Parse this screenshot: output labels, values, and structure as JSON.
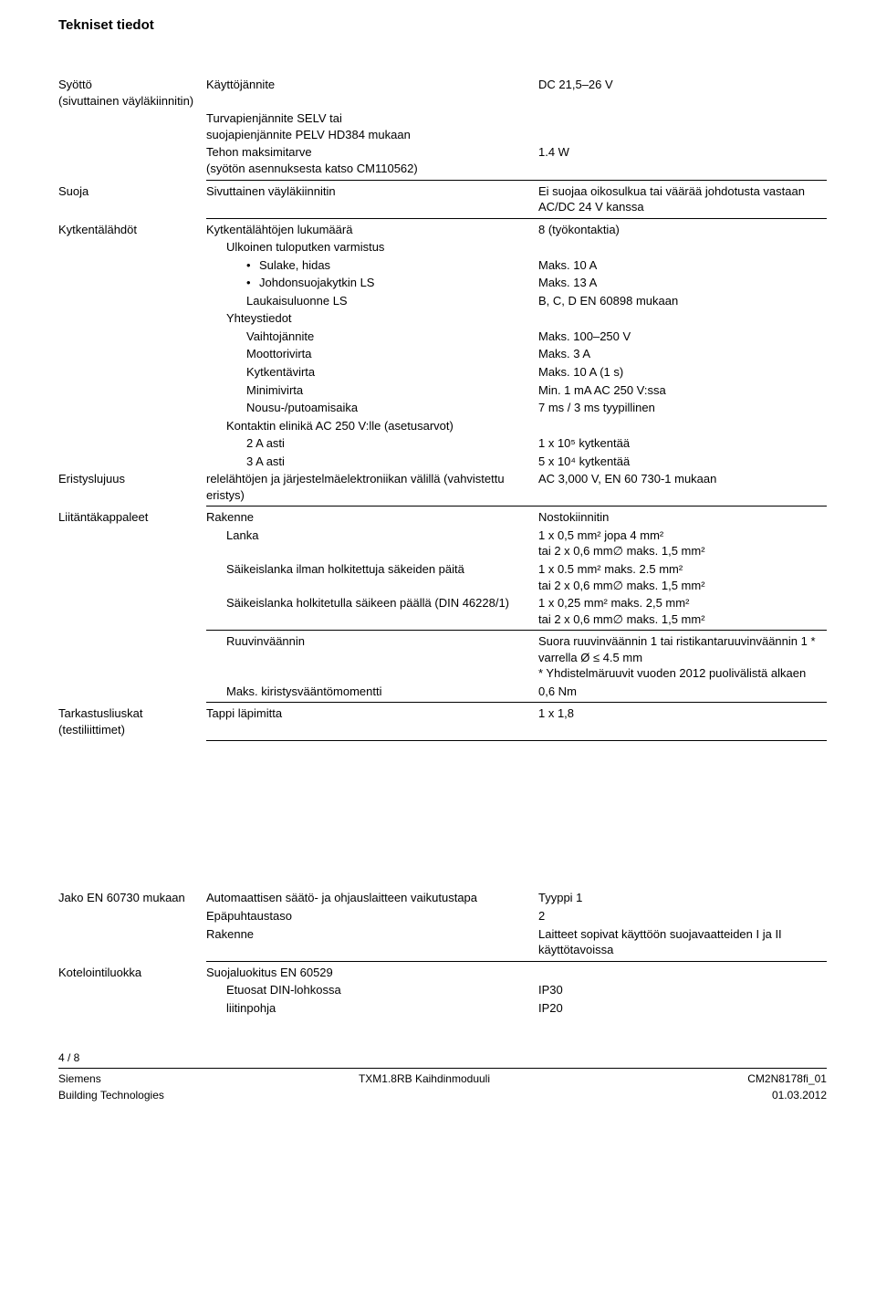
{
  "title": "Tekniset tiedot",
  "sections": [
    {
      "label": "Syöttö\n(sivuttainen väyläkiinnitin)",
      "rows": [
        {
          "mid": "Käyttöjännite",
          "val": "DC 21,5–26 V"
        },
        {
          "mid": "Turvapienjännite SELV tai\nsuojapienjännite PELV HD384 mukaan",
          "val": ""
        },
        {
          "mid": "Tehon maksimitarve\n(syötön asennuksesta katso CM110562)",
          "val": "1.4 W"
        }
      ],
      "hrAfter": true
    },
    {
      "label": "Suoja",
      "rows": [
        {
          "mid": "Sivuttainen väyläkiinnitin",
          "val": "Ei suojaa oikosulkua tai väärää johdotusta vastaan AC/DC 24 V kanssa"
        }
      ],
      "hrAfter": true
    },
    {
      "label": "Kytkentälähdöt",
      "rows": [
        {
          "mid": "Kytkentälähtöjen lukumäärä",
          "val": "8 (työkontaktia)"
        },
        {
          "mid": "Ulkoinen tuloputken varmistus",
          "val": "",
          "indent": 1
        },
        {
          "mid": "Sulake, hidas",
          "val": "Maks. 10 A",
          "indent": 2,
          "bullet": true
        },
        {
          "mid": "Johdonsuojakytkin LS",
          "val": "Maks. 13 A",
          "indent": 2,
          "bullet": true
        },
        {
          "mid": "Laukaisuluonne LS",
          "val": "B, C, D EN 60898 mukaan",
          "indent": 2
        },
        {
          "mid": "Yhteystiedot",
          "val": "",
          "indent": 1
        },
        {
          "mid": "Vaihtojännite",
          "val": "Maks. 100–250 V",
          "indent": 2
        },
        {
          "mid": "Moottorivirta",
          "val": "Maks. 3 A",
          "indent": 2
        },
        {
          "mid": "Kytkentävirta",
          "val": "Maks. 10 A (1 s)",
          "indent": 2
        },
        {
          "mid": "Minimivirta",
          "val": "Min. 1 mA AC 250 V:ssa",
          "indent": 2
        },
        {
          "mid": "Nousu-/putoamisaika",
          "val": "7 ms / 3 ms tyypillinen",
          "indent": 2
        },
        {
          "mid": "Kontaktin elinikä AC 250 V:lle      (asetusarvot)",
          "val": "",
          "indent": 1
        },
        {
          "mid": "2 A asti",
          "val": "1 x 10⁵ kytkentää",
          "indent": 2
        },
        {
          "mid": "3 A asti",
          "val": "5 x 10⁴ kytkentää",
          "indent": 2
        }
      ]
    },
    {
      "label": "Eristyslujuus",
      "rows": [
        {
          "mid": "relelähtöjen ja järjestelmäelektroniikan välillä (vahvistettu eristys)",
          "val": "AC 3,000 V, EN 60 730-1 mukaan"
        }
      ],
      "hrAfter": true
    },
    {
      "label": "Liitäntäkappaleet",
      "rows": [
        {
          "mid": "Rakenne",
          "val": "Nostokiinnitin"
        },
        {
          "mid": "Lanka",
          "val": "1 x 0,5 mm² jopa 4 mm²\ntai 2 x 0,6 mm∅ maks. 1,5 mm²",
          "indent": 1
        },
        {
          "mid": "Säikeislanka ilman holkitettuja säkeiden päitä",
          "val": "1 x 0.5 mm² maks. 2.5 mm²\ntai 2 x 0,6 mm∅ maks. 1,5 mm²",
          "indent": 1
        },
        {
          "mid": "Säikeislanka holkitetulla säikeen päällä (DIN 46228/1)",
          "val": "1 x 0,25 mm² maks. 2,5 mm²\ntai 2 x 0,6 mm∅ maks. 1,5 mm²",
          "indent": 1
        }
      ],
      "hrAfter": true
    },
    {
      "label": "",
      "rows": [
        {
          "mid": "Ruuvinväännin",
          "val": "Suora ruuvinväännin 1 tai ristikantaruuvinväännin 1 * varrella Ø ≤ 4.5 mm\n* Yhdistelmäruuvit vuoden 2012 puolivälistä alkaen",
          "indent": 1
        },
        {
          "mid": "Maks. kiristysvääntömomentti",
          "val": "0,6 Nm",
          "indent": 1
        }
      ],
      "hrAfter": true
    },
    {
      "label": "Tarkastusliuskat\n(testiliittimet)",
      "rows": [
        {
          "mid": "Tappi läpimitta",
          "val": "1 x 1,8"
        }
      ],
      "hrAfter": true
    }
  ],
  "sections2": [
    {
      "label": "Jako EN 60730 mukaan",
      "rows": [
        {
          "mid": "Automaattisen säätö- ja ohjauslaitteen vaikutustapa",
          "val": "Tyyppi 1"
        },
        {
          "mid": "Epäpuhtaustaso",
          "val": "2"
        },
        {
          "mid": "Rakenne",
          "val": "Laitteet sopivat käyttöön suojavaatteiden I ja II käyttötavoissa"
        }
      ],
      "hrAfter": true
    },
    {
      "label": "Kotelointiluokka",
      "rows": [
        {
          "mid": "Suojaluokitus EN 60529",
          "val": ""
        },
        {
          "mid": "Etuosat DIN-lohkossa",
          "val": "IP30",
          "indent": 1
        },
        {
          "mid": "liitinpohja",
          "val": "IP20",
          "indent": 1
        }
      ]
    }
  ],
  "footer": {
    "pageNum": "4 / 8",
    "left1": "Siemens",
    "center1": "TXM1.8RB  Kaihdinmoduuli",
    "right1": "CM2N8178fi_01",
    "left2": "Building Technologies",
    "right2": "01.03.2012"
  }
}
